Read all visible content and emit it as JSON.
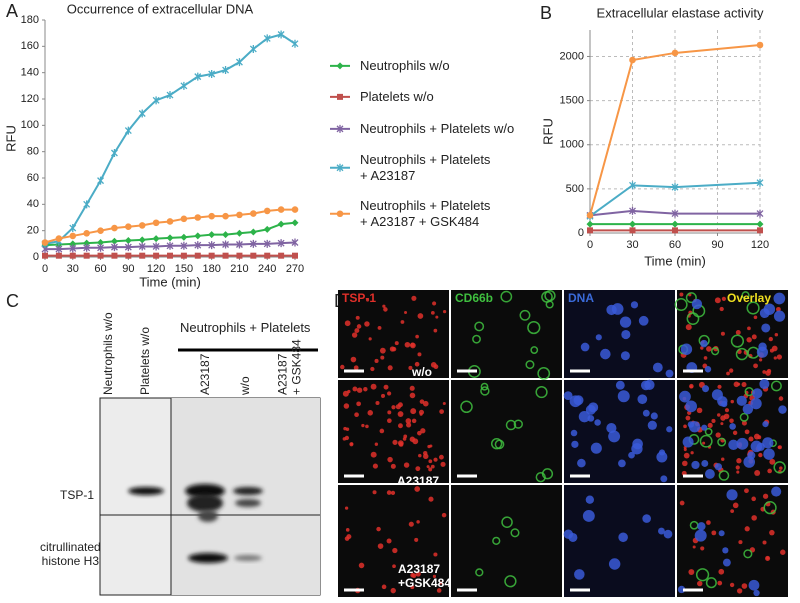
{
  "panel_labels": [
    "A",
    "B",
    "C",
    "D"
  ],
  "chart_data": [
    {
      "type": "line",
      "title": "Occurrence of extracellular DNA",
      "x_label": "Time (min)",
      "y_label": "RFU",
      "x": [
        0,
        15,
        30,
        45,
        60,
        75,
        90,
        105,
        120,
        135,
        150,
        165,
        180,
        195,
        210,
        225,
        240,
        255,
        270
      ],
      "xlim": [
        0,
        270
      ],
      "xticks": [
        0,
        30,
        60,
        90,
        120,
        150,
        180,
        210,
        240,
        270
      ],
      "ylim": [
        0,
        180
      ],
      "yticks": [
        0,
        20,
        40,
        60,
        80,
        100,
        120,
        140,
        160,
        180
      ],
      "grid": false,
      "legend": "right",
      "series": [
        {
          "name": "Neutrophils w/o",
          "color": "#2db34a",
          "marker": "diamond",
          "values": [
            9,
            9.5,
            10,
            10.5,
            11,
            12,
            12.5,
            13,
            14,
            14.5,
            15,
            16,
            17,
            17,
            18,
            19,
            21,
            25,
            26
          ]
        },
        {
          "name": "Platelets w/o",
          "color": "#c0504d",
          "marker": "square",
          "values": [
            1,
            1,
            1,
            1,
            1,
            1,
            1,
            1,
            1,
            1,
            1,
            1,
            1,
            1,
            1,
            1,
            1,
            1,
            1
          ]
        },
        {
          "name": "Neutrophils + Platelets w/o",
          "color": "#8064a2",
          "marker": "star",
          "values": [
            6,
            6,
            6.5,
            7,
            7,
            7.5,
            7.5,
            8,
            8,
            8.5,
            8.5,
            9,
            9,
            9.5,
            9.5,
            10,
            10,
            10.5,
            11
          ]
        },
        {
          "name": "Neutrophils + Platelets\n+ A23187",
          "color": "#4bacc6",
          "marker": "star",
          "values": [
            10,
            12,
            22,
            40,
            58,
            79,
            96,
            109,
            119,
            123,
            130,
            137,
            139,
            142,
            148,
            158,
            166,
            169,
            162
          ]
        },
        {
          "name": "Neutrophils + Platelets\n+ A23187 + GSK484",
          "color": "#f79646",
          "marker": "circle",
          "values": [
            11,
            14,
            16,
            18,
            20,
            22,
            23,
            24,
            26,
            27,
            29,
            30,
            31,
            31,
            32,
            33,
            35,
            36,
            36
          ]
        }
      ]
    },
    {
      "type": "line",
      "title": "Extracellular elastase activity",
      "x_label": "Time (min)",
      "y_label": "RFU",
      "x": [
        0,
        30,
        60,
        120
      ],
      "xlim": [
        0,
        120
      ],
      "xticks": [
        0,
        30,
        60,
        90,
        120
      ],
      "ylim": [
        0,
        2300
      ],
      "yticks": [
        0,
        500,
        1000,
        1500,
        2000
      ],
      "grid": true,
      "series": [
        {
          "color": "#2db34a",
          "marker": "diamond",
          "values": [
            100,
            100,
            100,
            100
          ]
        },
        {
          "color": "#c0504d",
          "marker": "square",
          "values": [
            30,
            30,
            30,
            30
          ]
        },
        {
          "color": "#8064a2",
          "marker": "star",
          "values": [
            200,
            250,
            220,
            220
          ]
        },
        {
          "color": "#4bacc6",
          "marker": "star",
          "values": [
            190,
            540,
            520,
            570
          ]
        },
        {
          "color": "#f79646",
          "marker": "circle",
          "values": [
            200,
            1960,
            2040,
            2130
          ]
        }
      ]
    }
  ],
  "blot": {
    "group": "Neutrophils + Platelets",
    "lanes": [
      "Neutrophils w/o",
      "Platelets w/o",
      "A23187",
      "w/o",
      "A23187\n+ GSK484"
    ],
    "rows": [
      "TSP-1",
      "citrullinated\nhistone H3"
    ]
  },
  "micrographs": {
    "channels": [
      "TSP-1",
      "CD66b",
      "DNA",
      "Overlay"
    ],
    "conditions": [
      "w/o",
      "A23187",
      "A23187\n+GSK484"
    ]
  }
}
